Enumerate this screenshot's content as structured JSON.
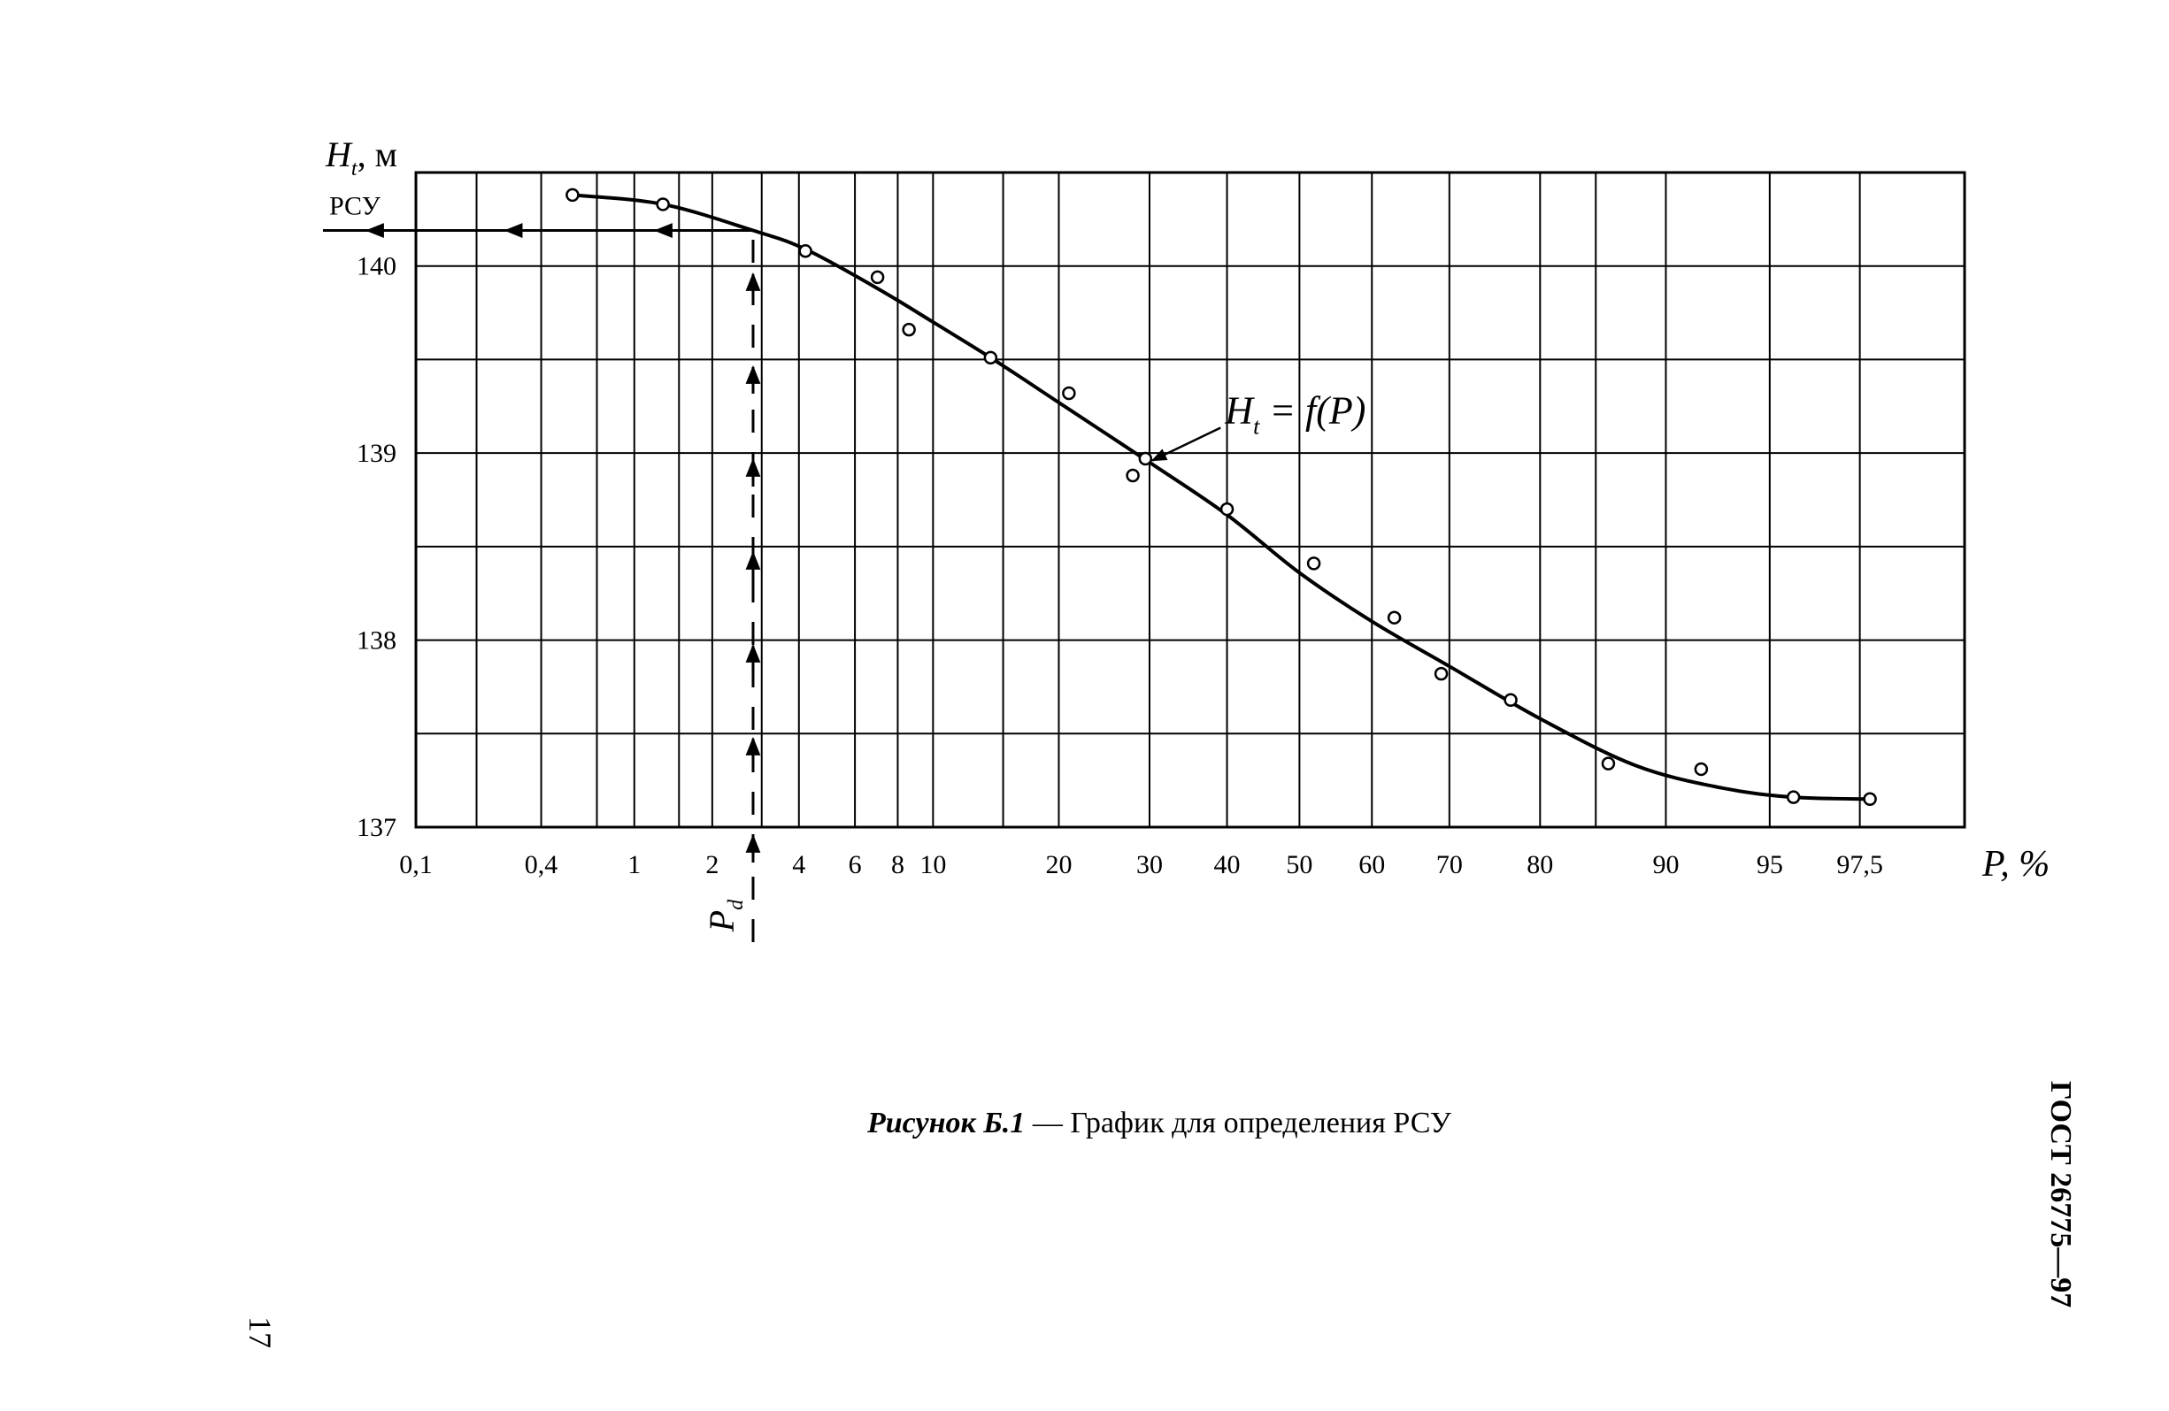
{
  "chart_data": {
    "type": "scatter",
    "xscale": "normal-probability",
    "x_tick_labels": [
      "0,1",
      "0,4",
      "1",
      "2",
      "4",
      "6",
      "8",
      "10",
      "20",
      "30",
      "40",
      "50",
      "60",
      "70",
      "80",
      "90",
      "95",
      "97,5"
    ],
    "x_ticks": [
      0.1,
      0.4,
      1,
      2,
      4,
      6,
      8,
      10,
      20,
      30,
      40,
      50,
      60,
      70,
      80,
      90,
      95,
      97.5
    ],
    "x_gridlines": [
      0.1,
      0.2,
      0.4,
      0.7,
      1,
      1.5,
      2,
      3,
      4,
      6,
      8,
      10,
      15,
      20,
      30,
      40,
      50,
      60,
      70,
      80,
      85,
      90,
      95,
      97.5,
      99
    ],
    "y_tick_labels": [
      "137",
      "138",
      "139",
      "140"
    ],
    "y_ticks": [
      137,
      138,
      139,
      140
    ],
    "ylim": [
      137,
      140.5
    ],
    "y_gridline_step": 0.5,
    "ylabel_main": "H",
    "ylabel_sub": "t",
    "ylabel_unit": ", м",
    "xlabel": "P, %",
    "points": [
      {
        "x": 0.55,
        "y": 140.38
      },
      {
        "x": 1.3,
        "y": 140.33
      },
      {
        "x": 4.2,
        "y": 140.08
      },
      {
        "x": 7.0,
        "y": 139.94
      },
      {
        "x": 8.6,
        "y": 139.66
      },
      {
        "x": 14.0,
        "y": 139.51
      },
      {
        "x": 21.0,
        "y": 139.32
      },
      {
        "x": 28.0,
        "y": 138.88
      },
      {
        "x": 29.5,
        "y": 138.97
      },
      {
        "x": 40.0,
        "y": 138.7
      },
      {
        "x": 52.0,
        "y": 138.41
      },
      {
        "x": 63.0,
        "y": 138.12
      },
      {
        "x": 69.0,
        "y": 137.82
      },
      {
        "x": 77.0,
        "y": 137.68
      },
      {
        "x": 86.0,
        "y": 137.34
      },
      {
        "x": 92.0,
        "y": 137.31
      },
      {
        "x": 95.8,
        "y": 137.16
      },
      {
        "x": 97.7,
        "y": 137.15
      }
    ],
    "curve": [
      {
        "x": 0.55,
        "y": 140.38
      },
      {
        "x": 1.3,
        "y": 140.33
      },
      {
        "x": 2.8,
        "y": 140.19
      },
      {
        "x": 4.2,
        "y": 140.09
      },
      {
        "x": 7.0,
        "y": 139.88
      },
      {
        "x": 10.0,
        "y": 139.7
      },
      {
        "x": 14.0,
        "y": 139.51
      },
      {
        "x": 20.0,
        "y": 139.27
      },
      {
        "x": 30.0,
        "y": 138.95
      },
      {
        "x": 40.0,
        "y": 138.67
      },
      {
        "x": 50.0,
        "y": 138.36
      },
      {
        "x": 60.0,
        "y": 138.1
      },
      {
        "x": 70.0,
        "y": 137.86
      },
      {
        "x": 80.0,
        "y": 137.58
      },
      {
        "x": 88.0,
        "y": 137.33
      },
      {
        "x": 93.0,
        "y": 137.21
      },
      {
        "x": 95.8,
        "y": 137.16
      },
      {
        "x": 97.7,
        "y": 137.15
      }
    ],
    "curve_label": "H  = f(P)",
    "curve_label_sub": "t",
    "curve_label_at": {
      "x": 29.5,
      "y": 138.97
    },
    "pd_value": 2.8,
    "pd_label_main": "P",
    "pd_label_sub": "d",
    "rsu_label": "РСУ",
    "rsu_value": 140.19
  },
  "caption": {
    "italic_part": "Рисунок Б.1",
    "regular_part": " — График для определения РСУ"
  },
  "side_text": "ГОСТ 26775—97",
  "page_number": "17"
}
